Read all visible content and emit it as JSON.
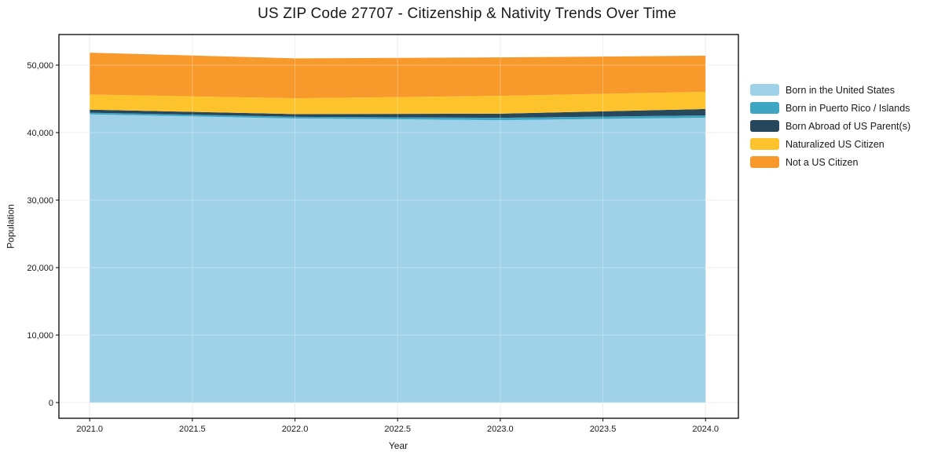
{
  "chart_data": {
    "type": "area",
    "stacked": true,
    "title": "US ZIP Code 27707 - Citizenship & Nativity Trends Over Time",
    "xlabel": "Year",
    "ylabel": "Population",
    "x": [
      2021,
      2022,
      2023,
      2024
    ],
    "series": [
      {
        "name": "Born in the United States",
        "color": "#9fd1e8",
        "values": [
          42700,
          42100,
          41850,
          42200
        ]
      },
      {
        "name": "Born in Puerto Rico / Islands",
        "color": "#3ea6c3",
        "values": [
          250,
          250,
          350,
          350
        ]
      },
      {
        "name": "Born Abroad of US Parent(s)",
        "color": "#27485c",
        "values": [
          450,
          400,
          600,
          950
        ]
      },
      {
        "name": "Naturalized US Citizen",
        "color": "#fcc32d",
        "values": [
          2250,
          2350,
          2650,
          2550
        ]
      },
      {
        "name": "Not a US Citizen",
        "color": "#f8992b",
        "values": [
          6200,
          5900,
          5700,
          5350
        ]
      }
    ],
    "stack_totals": [
      51850,
      51000,
      51150,
      51400
    ],
    "xticks": [
      2021.0,
      2021.5,
      2022.0,
      2022.5,
      2023.0,
      2023.5,
      2024.0
    ],
    "yticks": [
      0,
      10000,
      20000,
      30000,
      40000,
      50000
    ],
    "xlim": [
      2020.85,
      2024.16
    ],
    "ylim": [
      -2326,
      54535
    ],
    "grid": true,
    "legend_position": "right",
    "colors": {
      "frame": "#000000",
      "gridline": "#e7e7e7",
      "text": "#191919",
      "background": "#ffffff"
    }
  }
}
